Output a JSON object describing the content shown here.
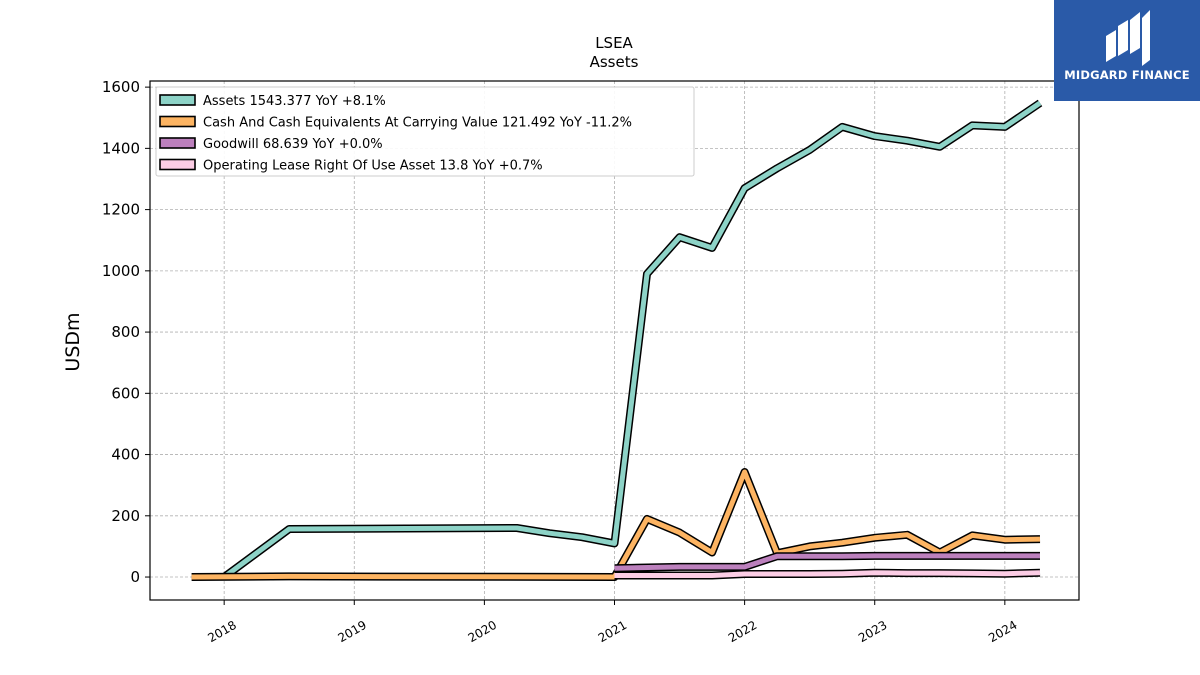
{
  "chart_data": {
    "type": "line",
    "title": "LSEA",
    "subtitle": "Assets",
    "ylabel": "USDm",
    "xlabel": "",
    "ylim": [
      -75,
      1620
    ],
    "xlim": [
      2017.43,
      2024.57
    ],
    "yticks": [
      0,
      200,
      400,
      600,
      800,
      1000,
      1200,
      1400,
      1600
    ],
    "xticks": [
      2018,
      2019,
      2020,
      2021,
      2022,
      2023,
      2024
    ],
    "grid": true,
    "legend_position": "top-left",
    "series": [
      {
        "name": "Assets",
        "legend": "Assets  1543.377 YoY +8.1%",
        "color": "#8dd3c7",
        "x": [
          2018.0,
          2018.5,
          2020.25,
          2020.5,
          2020.75,
          2021.0,
          2021.25,
          2021.5,
          2021.75,
          2022.0,
          2022.25,
          2022.5,
          2022.75,
          2023.0,
          2023.25,
          2023.5,
          2023.75,
          2024.0,
          2024.27
        ],
        "values": [
          0,
          157,
          160,
          143,
          130,
          110,
          990,
          1110,
          1075,
          1270,
          1335,
          1395,
          1470,
          1440,
          1425,
          1405,
          1475,
          1470,
          1548
        ]
      },
      {
        "name": "Cash And Cash Equivalents At Carrying Value",
        "legend": "Cash And Cash Equivalents At Carrying Value  121.492 YoY -11.2%",
        "color": "#fdb462",
        "x": [
          2017.75,
          2018.5,
          2021.0,
          2021.25,
          2021.5,
          2021.75,
          2022.0,
          2022.25,
          2022.5,
          2022.75,
          2023.0,
          2023.25,
          2023.5,
          2023.75,
          2024.0,
          2024.27
        ],
        "values": [
          0,
          2,
          0,
          190,
          145,
          80,
          343,
          78,
          100,
          112,
          128,
          138,
          80,
          136,
          122,
          124
        ]
      },
      {
        "name": "Goodwill",
        "legend": "Goodwill  68.639 YoY +0.0%",
        "color": "#bc80bd",
        "x": [
          2021.0,
          2021.5,
          2022.0,
          2022.25,
          2022.5,
          2022.75,
          2023.0,
          2023.25,
          2023.5,
          2023.75,
          2024.0,
          2024.27
        ],
        "values": [
          29,
          33,
          33,
          68,
          68,
          68,
          69,
          69,
          69,
          69,
          69,
          69
        ]
      },
      {
        "name": "Operating Lease Right Of Use Asset",
        "legend": "Operating Lease Right Of Use Asset  13.8 YoY +0.7%",
        "color": "#fccde5",
        "x": [
          2021.0,
          2021.75,
          2022.0,
          2022.5,
          2022.75,
          2023.0,
          2023.25,
          2023.5,
          2023.75,
          2024.0,
          2024.27
        ],
        "values": [
          5,
          5,
          10,
          10,
          11,
          14,
          13,
          13,
          12,
          11,
          14
        ]
      }
    ]
  },
  "logo": {
    "text": "MIDGARD FINANCE"
  }
}
